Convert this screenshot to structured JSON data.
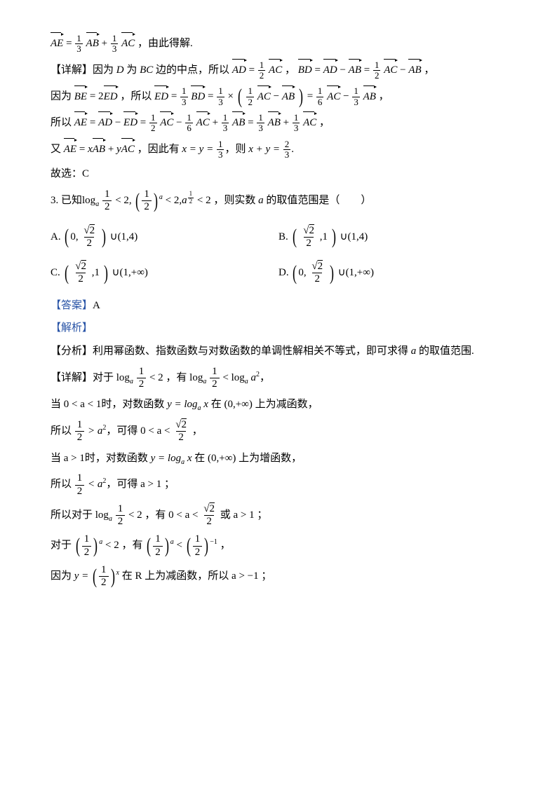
{
  "colors": {
    "text": "#000000",
    "accent": "#2853a6",
    "bg": "#ffffff"
  },
  "fonts": {
    "body_family": "SimSun / Times New Roman",
    "body_size_pt": 11,
    "math_family": "Times New Roman Italic"
  },
  "content": {
    "l01a": "AE = ",
    "l01b": "AB + ",
    "l01c": "AC",
    "frac_1_3_n": "1",
    "frac_1_3_d": "3",
    "l01d": " ，由此得解.",
    "l02a": "【详解】因为 ",
    "l02b": " 为 ",
    "l02c": " 边的中点，所以",
    "l02_var_D": "D",
    "l02_var_BC": "BC",
    "vec_AD": "AD",
    "vec_AC": "AC",
    "vec_BD": "BD",
    "vec_AB": "AB",
    "frac_1_2_n": "1",
    "frac_1_2_d": "2",
    "l02d": " ，",
    "l03a": "因为 ",
    "vec_BE": "BE",
    "vec_ED": "ED",
    "l03b": " = 2",
    "l03c": " ，所以",
    "frac_1_6_n": "1",
    "frac_1_6_d": "6",
    "l04a": "所以 ",
    "vec_AE": "AE",
    "l05a": "又 ",
    "l05_eq": " ，因此有 ",
    "l05_xy": "x = y = ",
    "l05_tail": "，则 ",
    "l05_xpy": "x + y = ",
    "frac_2_3_n": "2",
    "frac_2_3_d": "3",
    "l06": "故选：C",
    "q3_num": "3. 已知",
    "q3_log": "log",
    "q3_a": "a",
    "q3_lt2": " < 2,",
    "q3_lt2b": " < 2",
    "q3_tail": " ，则实数 ",
    "q3_tail2": " 的取值范围是（　　）",
    "sqrt2": "2",
    "optA_label": "A.",
    "optB_label": "B.",
    "optC_label": "C.",
    "optD_label": "D.",
    "interval_0": "0,",
    "interval_1": ",1",
    "interval_14": "(1,4)",
    "interval_1inf": "(1,+∞)",
    "union": "∪",
    "ans_tag": "【答案】",
    "ans_val": "A",
    "jiexi": "【解析】",
    "fenxi": "【分析】利用幂函数、指数函数与对数函数的单调性解相关不等式，即可求得 ",
    "fenxi2": " 的取值范围.",
    "xj1a": "【详解】对于",
    "xj1b": " ，有",
    "xj1c": "，",
    "xj2": "当 0 < a < 1时，对数函数 ",
    "xj2b": " 在 ",
    "xj2c": " 上为减函数，",
    "y_eq_log": "y = log",
    "x_var": "x",
    "intv_0inf": "(0,+∞)",
    "xj3a": "所以 ",
    "xj3b": " > a",
    "xj3c": "，可得 ",
    "xj3d": "0 < a < ",
    "xj4": "当 a > 1时，对数函数 ",
    "xj4b": " 上为增函数，",
    "xj5b": " < a",
    "xj5c": "，可得 a > 1 ；",
    "xj6a": "所以对于",
    "xj6b": " ，有 ",
    "xj6c": " 或 a > 1 ；",
    "xj7a": "对于",
    "xj7b": " ，有",
    "neg1": "−1",
    "xj8a": "因为 ",
    "y_eq": "y = ",
    "xj8b": " 在 ",
    "R": "R",
    "xj8c": " 上为减函数，所以 a > −1 ；",
    "sq2": "2",
    "two": "2",
    "exp_x": "x"
  }
}
